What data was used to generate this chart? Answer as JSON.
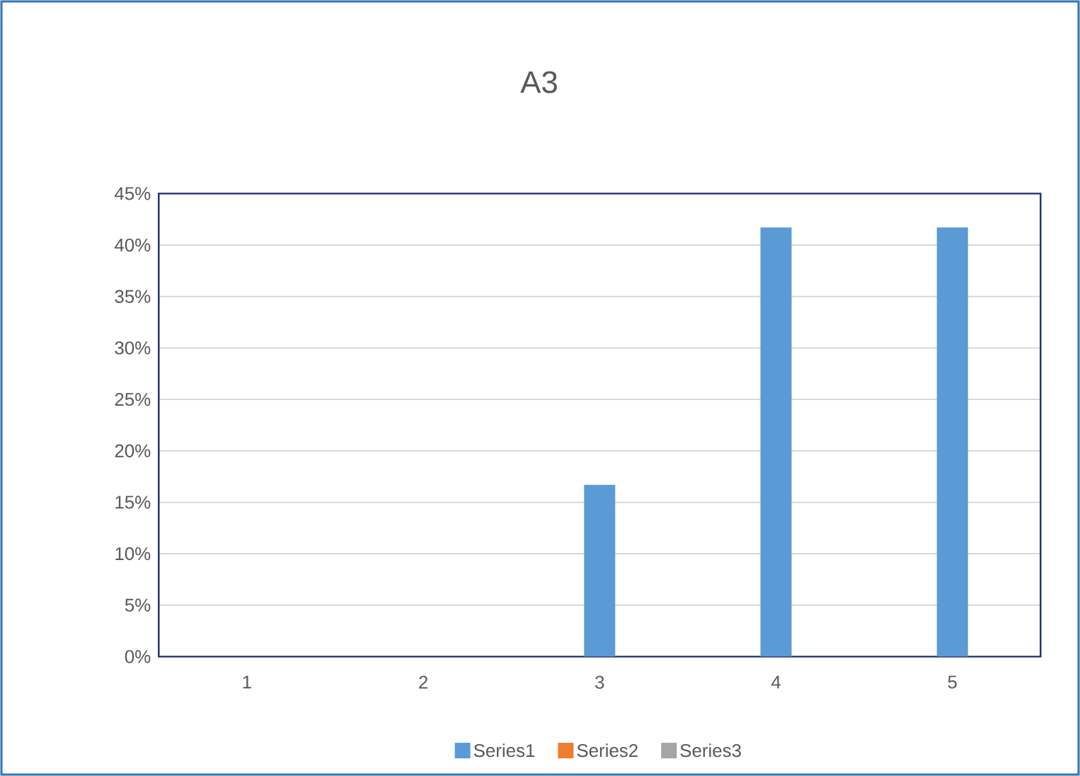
{
  "chart_data": {
    "type": "bar",
    "title": "A3",
    "categories": [
      "1",
      "2",
      "3",
      "4",
      "5"
    ],
    "series": [
      {
        "name": "Series1",
        "color": "#5b9bd5",
        "values": [
          0,
          0,
          16.7,
          41.7,
          41.7
        ]
      },
      {
        "name": "Series2",
        "color": "#ed7d31",
        "values": [
          0,
          0,
          0,
          0,
          0
        ]
      },
      {
        "name": "Series3",
        "color": "#a5a5a5",
        "values": [
          0,
          0,
          0,
          0,
          0
        ]
      }
    ],
    "ylim": [
      0,
      45
    ],
    "yticks": [
      {
        "value": 0,
        "label": "0%"
      },
      {
        "value": 5,
        "label": "5%"
      },
      {
        "value": 10,
        "label": "10%"
      },
      {
        "value": 15,
        "label": "15%"
      },
      {
        "value": 20,
        "label": "20%"
      },
      {
        "value": 25,
        "label": "25%"
      },
      {
        "value": 30,
        "label": "30%"
      },
      {
        "value": 35,
        "label": "35%"
      },
      {
        "value": 40,
        "label": "40%"
      },
      {
        "value": 45,
        "label": "45%"
      }
    ],
    "grid": "y",
    "legend": "bottom"
  }
}
